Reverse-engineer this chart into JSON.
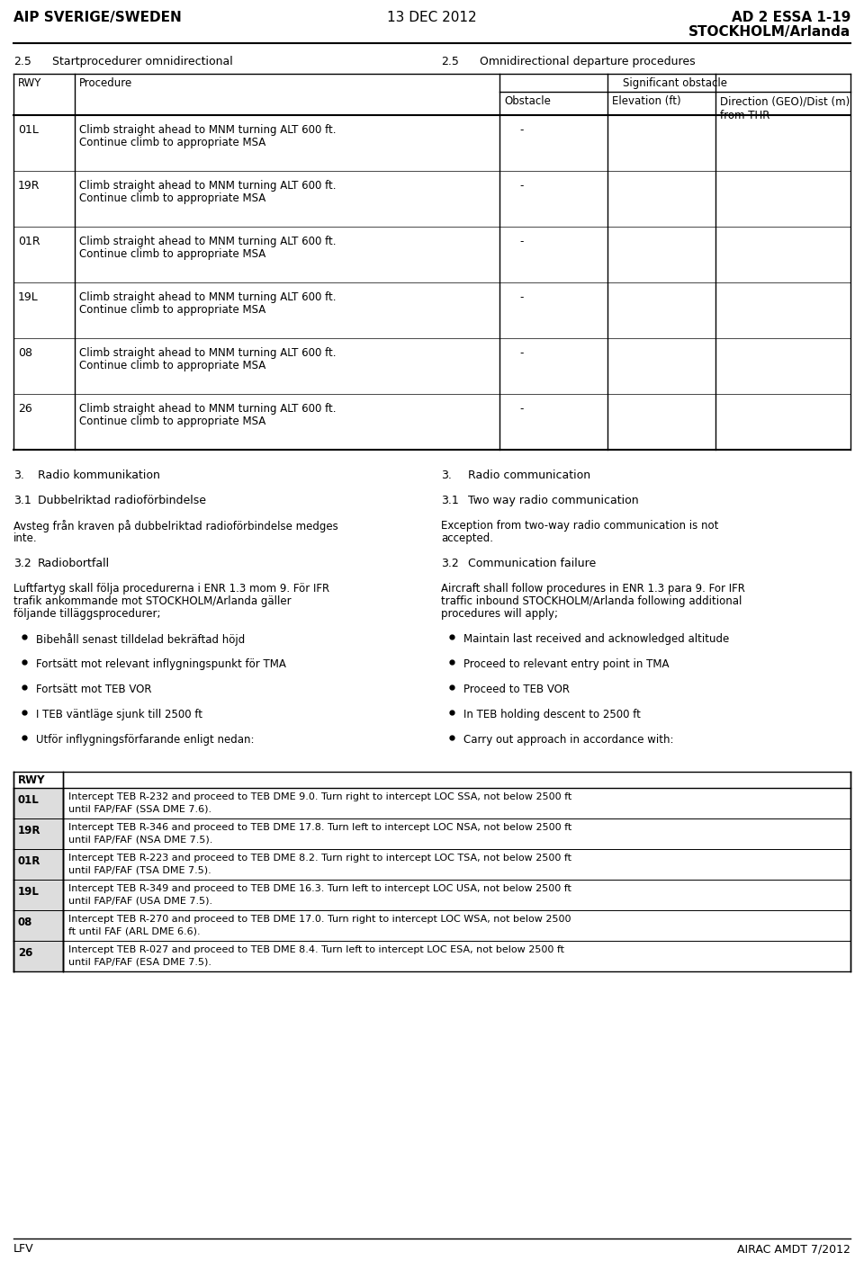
{
  "header_left": "AIP SVERIGE/SWEDEN",
  "header_center": "13 DEC 2012",
  "header_right_line1": "AD 2 ESSA 1-19",
  "header_right_line2": "STOCKHOLM/Arlanda",
  "footer_left": "LFV",
  "footer_right": "AIRAC AMDT 7/2012",
  "section_left": "2.5",
  "section_left_title": "Startprocedurer omnidirectional",
  "section_right": "2.5",
  "section_right_title": "Omnidirectional departure procedures",
  "table_rows": [
    {
      "rwy": "01L",
      "procedure": "Climb straight ahead to MNM turning ALT 600 ft.\nContinue climb to appropriate MSA",
      "obstacle": "-"
    },
    {
      "rwy": "19R",
      "procedure": "Climb straight ahead to MNM turning ALT 600 ft.\nContinue climb to appropriate MSA",
      "obstacle": "-"
    },
    {
      "rwy": "01R",
      "procedure": "Climb straight ahead to MNM turning ALT 600 ft.\nContinue climb to appropriate MSA",
      "obstacle": "-"
    },
    {
      "rwy": "19L",
      "procedure": "Climb straight ahead to MNM turning ALT 600 ft.\nContinue climb to appropriate MSA",
      "obstacle": "-"
    },
    {
      "rwy": "08",
      "procedure": "Climb straight ahead to MNM turning ALT 600 ft.\nContinue climb to appropriate MSA",
      "obstacle": "-"
    },
    {
      "rwy": "26",
      "procedure": "Climb straight ahead to MNM turning ALT 600 ft.\nContinue climb to appropriate MSA",
      "obstacle": "-"
    }
  ],
  "section3_left_title": "3.",
  "section3_left_text": "Radio kommunikation",
  "section3_right_title": "3.",
  "section3_right_text": "Radio communication",
  "section31_left_title": "3.1",
  "section31_left_text": "Dubbelriktad radioförbindelse",
  "section31_right_title": "3.1",
  "section31_right_text": "Two way radio communication",
  "para_left1": "Avsteg från kraven på dubbelriktad radioförbindelse medges\ninte.",
  "para_right1": "Exception from two-way radio communication is not\naccepted.",
  "section32_left_title": "3.2",
  "section32_left_text": "Radiobortfall",
  "section32_right_title": "3.2",
  "section32_right_text": "Communication failure",
  "para_left2": "Luftfartyg skall följa procedurerna i ENR 1.3 mom 9. För IFR\ntrafik ankommande mot STOCKHOLM/Arlanda gäller\nföljande tilläggsprocedurer;",
  "para_right2": "Aircraft shall follow procedures in ENR 1.3 para 9. For IFR\ntraffic inbound STOCKHOLM/Arlanda following additional\nprocedures will apply;",
  "bullets_left": [
    "Bibehåll senast tilldelad bekräftad höjd",
    "Fortsätt mot relevant inflygningspunkt för TMA",
    "Fortsätt mot TEB VOR",
    "I TEB väntläge sjunk till 2500 ft",
    "Utför inflygningsförfarande enligt nedan:"
  ],
  "bullets_right": [
    "Maintain last received and acknowledged altitude",
    "Proceed to relevant entry point in TMA",
    "Proceed to TEB VOR",
    "In TEB holding descent to 2500 ft",
    "Carry out approach in accordance with:"
  ],
  "bottom_table_rows": [
    {
      "rwy": "01L",
      "text": "Intercept TEB R-232 and proceed to TEB DME 9.0. Turn right to intercept LOC SSA, not below 2500 ft\nuntil FAP/FAF (SSA DME 7.6)."
    },
    {
      "rwy": "19R",
      "text": "Intercept TEB R-346 and proceed to TEB DME 17.8. Turn left to intercept LOC NSA, not below 2500 ft\nuntil FAP/FAF (NSA DME 7.5)."
    },
    {
      "rwy": "01R",
      "text": "Intercept TEB R-223 and proceed to TEB DME 8.2. Turn right to intercept LOC TSA, not below 2500 ft\nuntil FAP/FAF (TSA DME 7.5)."
    },
    {
      "rwy": "19L",
      "text": "Intercept TEB R-349 and proceed to TEB DME 16.3. Turn left to intercept LOC USA, not below 2500 ft\nuntil FAP/FAF (USA DME 7.5)."
    },
    {
      "rwy": "08",
      "text": "Intercept TEB R-270 and proceed to TEB DME 17.0. Turn right to intercept LOC WSA, not below 2500\nft until FAF (ARL DME 6.6)."
    },
    {
      "rwy": "26",
      "text": "Intercept TEB R-027 and proceed to TEB DME 8.4. Turn left to intercept LOC ESA, not below 2500 ft\nuntil FAP/FAF (ESA DME 7.5)."
    }
  ],
  "bg_color": "#ffffff",
  "text_color": "#000000"
}
